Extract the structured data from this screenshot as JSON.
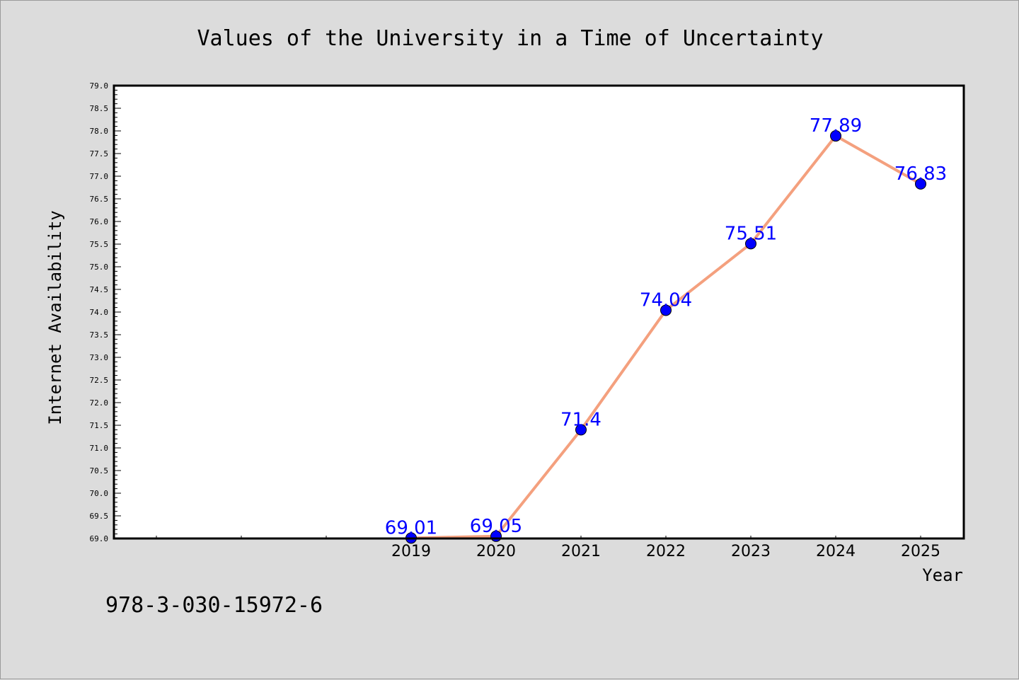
{
  "chart_data": {
    "type": "line",
    "title": "Values of the University in a Time of Uncertainty",
    "xlabel": "Year",
    "ylabel": "Internet Availability",
    "categories": [
      "2019",
      "2020",
      "2021",
      "2022",
      "2023",
      "2024",
      "2025"
    ],
    "series": [
      {
        "values": [
          69.01,
          69.05,
          71.4,
          74.04,
          75.51,
          77.89,
          76.83
        ],
        "labels": [
          "69.01",
          "69.05",
          "71.4",
          "74.04",
          "75.51",
          "77.89",
          "76.83"
        ],
        "line_color": "#f4a07e",
        "marker_color": "#0000ff"
      }
    ],
    "ylim": [
      69.0,
      79.0
    ],
    "y_major_step": 0.5,
    "grid": false,
    "legend": "none"
  },
  "footer": {
    "text": "978-3-030-15972-6"
  },
  "colors": {
    "background": "#dcdcdc",
    "plot_background": "#ffffff",
    "data_label": "#0000ff"
  }
}
